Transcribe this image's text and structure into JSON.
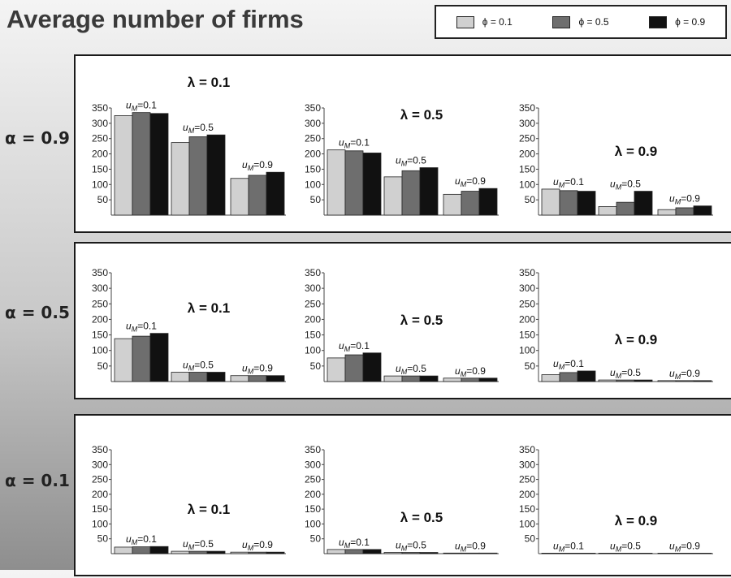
{
  "header": {
    "title": "Average number of firms"
  },
  "legend": {
    "items": [
      {
        "label": "ϕ = 0.1",
        "color": "#d0d0d0"
      },
      {
        "label": "ϕ = 0.5",
        "color": "#6e6e6e"
      },
      {
        "label": "ϕ = 0.9",
        "color": "#111111"
      }
    ]
  },
  "rows": [
    {
      "label": "α = 0.9"
    },
    {
      "label": "α = 0.5"
    },
    {
      "label": "α = 0.1"
    }
  ],
  "chart_data": {
    "type": "bar",
    "title": "Average number of firms",
    "ylim": [
      0,
      350
    ],
    "yticks": [
      50,
      100,
      150,
      200,
      250,
      300,
      350
    ],
    "grid": false,
    "legend_position": "top-right",
    "series_names": [
      "ϕ = 0.1",
      "ϕ = 0.5",
      "ϕ = 0.9"
    ],
    "group_labels": [
      "u_M=0.1",
      "u_M=0.5",
      "u_M=0.9"
    ],
    "panels": [
      {
        "alpha": "α = 0.9",
        "lambda": "λ = 0.1",
        "groups": [
          [
            325,
            335,
            332
          ],
          [
            237,
            256,
            262
          ],
          [
            120,
            130,
            140
          ]
        ]
      },
      {
        "alpha": "α = 0.9",
        "lambda": "λ = 0.5",
        "groups": [
          [
            213,
            210,
            203
          ],
          [
            125,
            145,
            155
          ],
          [
            68,
            78,
            87
          ]
        ]
      },
      {
        "alpha": "α = 0.9",
        "lambda": "λ = 0.9",
        "groups": [
          [
            85,
            80,
            78
          ],
          [
            28,
            42,
            78
          ],
          [
            18,
            24,
            30
          ]
        ]
      },
      {
        "alpha": "α = 0.5",
        "lambda": "λ = 0.1",
        "groups": [
          [
            138,
            146,
            155
          ],
          [
            30,
            30,
            30
          ],
          [
            19,
            19,
            19
          ]
        ]
      },
      {
        "alpha": "α = 0.5",
        "lambda": "λ = 0.5",
        "groups": [
          [
            76,
            86,
            92
          ],
          [
            18,
            18,
            18
          ],
          [
            11,
            11,
            11
          ]
        ]
      },
      {
        "alpha": "α = 0.5",
        "lambda": "λ = 0.9",
        "groups": [
          [
            22,
            29,
            34
          ],
          [
            5,
            5,
            5
          ],
          [
            3,
            3,
            3
          ]
        ]
      },
      {
        "alpha": "α = 0.1",
        "lambda": "λ = 0.1",
        "groups": [
          [
            22,
            23,
            24
          ],
          [
            8,
            8,
            8
          ],
          [
            5,
            5,
            5
          ]
        ]
      },
      {
        "alpha": "α = 0.1",
        "lambda": "λ = 0.5",
        "groups": [
          [
            14,
            14,
            14
          ],
          [
            4,
            4,
            4
          ],
          [
            2,
            2,
            2
          ]
        ]
      },
      {
        "alpha": "α = 0.1",
        "lambda": "λ = 0.9",
        "groups": [
          [
            1,
            1,
            1
          ],
          [
            1,
            1,
            1
          ],
          [
            1,
            1,
            1
          ]
        ]
      }
    ]
  }
}
